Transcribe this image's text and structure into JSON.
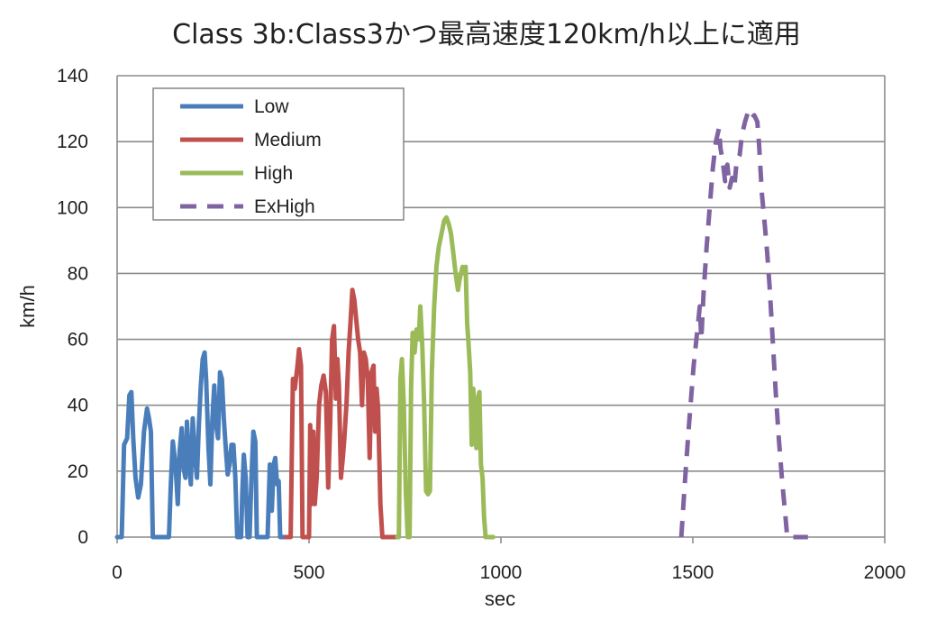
{
  "chart_data": {
    "type": "line",
    "title": "Class 3b:Class3かつ最高速度120km/h以上に適用",
    "xlabel": "sec",
    "ylabel": "km/h",
    "xlim": [
      0,
      2000
    ],
    "ylim": [
      0,
      140
    ],
    "x_ticks": [
      0,
      500,
      1000,
      1500,
      2000
    ],
    "y_ticks": [
      0,
      20,
      40,
      60,
      80,
      100,
      120,
      140
    ],
    "grid": true,
    "legend_position": "top-left",
    "series": [
      {
        "name": "Low",
        "color": "#4a7ebb",
        "dash": "solid",
        "points": [
          [
            0,
            0
          ],
          [
            12,
            0
          ],
          [
            18,
            28
          ],
          [
            26,
            30
          ],
          [
            32,
            43
          ],
          [
            37,
            44
          ],
          [
            42,
            30
          ],
          [
            48,
            18
          ],
          [
            55,
            12
          ],
          [
            62,
            16
          ],
          [
            70,
            32
          ],
          [
            78,
            39
          ],
          [
            83,
            36
          ],
          [
            88,
            32
          ],
          [
            93,
            0
          ],
          [
            135,
            0
          ],
          [
            140,
            16
          ],
          [
            145,
            29
          ],
          [
            152,
            22
          ],
          [
            158,
            10
          ],
          [
            163,
            26
          ],
          [
            168,
            33
          ],
          [
            173,
            21
          ],
          [
            178,
            18
          ],
          [
            182,
            35
          ],
          [
            188,
            22
          ],
          [
            192,
            16
          ],
          [
            197,
            36
          ],
          [
            203,
            24
          ],
          [
            208,
            18
          ],
          [
            213,
            34
          ],
          [
            218,
            46
          ],
          [
            223,
            54
          ],
          [
            228,
            56
          ],
          [
            232,
            48
          ],
          [
            238,
            27
          ],
          [
            243,
            16
          ],
          [
            248,
            35
          ],
          [
            253,
            46
          ],
          [
            258,
            34
          ],
          [
            263,
            30
          ],
          [
            268,
            50
          ],
          [
            273,
            48
          ],
          [
            278,
            36
          ],
          [
            283,
            27
          ],
          [
            288,
            19
          ],
          [
            293,
            22
          ],
          [
            298,
            28
          ],
          [
            303,
            28
          ],
          [
            308,
            18
          ],
          [
            313,
            0
          ],
          [
            323,
            0
          ],
          [
            326,
            13
          ],
          [
            330,
            25
          ],
          [
            335,
            18
          ],
          [
            340,
            0
          ],
          [
            345,
            0
          ],
          [
            350,
            18
          ],
          [
            355,
            32
          ],
          [
            360,
            29
          ],
          [
            364,
            0
          ],
          [
            392,
            0
          ],
          [
            398,
            22
          ],
          [
            403,
            8
          ],
          [
            408,
            22
          ],
          [
            412,
            24
          ],
          [
            417,
            16
          ],
          [
            421,
            17
          ],
          [
            425,
            0
          ],
          [
            440,
            0
          ]
        ]
      },
      {
        "name": "Medium",
        "color": "#c0504d",
        "dash": "solid",
        "points": [
          [
            440,
            0
          ],
          [
            452,
            0
          ],
          [
            458,
            48
          ],
          [
            463,
            45
          ],
          [
            470,
            52
          ],
          [
            474,
            57
          ],
          [
            479,
            52
          ],
          [
            483,
            0
          ],
          [
            500,
            0
          ],
          [
            503,
            34
          ],
          [
            507,
            10
          ],
          [
            511,
            32
          ],
          [
            515,
            10
          ],
          [
            520,
            18
          ],
          [
            526,
            40
          ],
          [
            532,
            46
          ],
          [
            538,
            49
          ],
          [
            544,
            44
          ],
          [
            550,
            15
          ],
          [
            555,
            34
          ],
          [
            560,
            60
          ],
          [
            565,
            64
          ],
          [
            570,
            42
          ],
          [
            574,
            54
          ],
          [
            578,
            46
          ],
          [
            583,
            18
          ],
          [
            588,
            24
          ],
          [
            592,
            30
          ],
          [
            598,
            41
          ],
          [
            603,
            56
          ],
          [
            608,
            65
          ],
          [
            613,
            75
          ],
          [
            618,
            72
          ],
          [
            623,
            66
          ],
          [
            628,
            60
          ],
          [
            633,
            56
          ],
          [
            638,
            40
          ],
          [
            643,
            56
          ],
          [
            648,
            54
          ],
          [
            653,
            48
          ],
          [
            658,
            24
          ],
          [
            663,
            50
          ],
          [
            668,
            52
          ],
          [
            672,
            32
          ],
          [
            676,
            45
          ],
          [
            680,
            39
          ],
          [
            686,
            10
          ],
          [
            691,
            0
          ],
          [
            730,
            0
          ]
        ]
      },
      {
        "name": "High",
        "color": "#9bbb59",
        "dash": "solid",
        "points": [
          [
            730,
            0
          ],
          [
            734,
            0
          ],
          [
            738,
            48
          ],
          [
            742,
            54
          ],
          [
            747,
            40
          ],
          [
            752,
            14
          ],
          [
            757,
            0
          ],
          [
            762,
            0
          ],
          [
            766,
            45
          ],
          [
            770,
            62
          ],
          [
            775,
            56
          ],
          [
            780,
            63
          ],
          [
            786,
            60
          ],
          [
            790,
            70
          ],
          [
            795,
            58
          ],
          [
            800,
            40
          ],
          [
            805,
            14
          ],
          [
            810,
            13
          ],
          [
            815,
            14
          ],
          [
            820,
            50
          ],
          [
            826,
            70
          ],
          [
            832,
            82
          ],
          [
            838,
            88
          ],
          [
            845,
            92
          ],
          [
            852,
            96
          ],
          [
            858,
            97
          ],
          [
            864,
            95
          ],
          [
            870,
            92
          ],
          [
            876,
            86
          ],
          [
            882,
            80
          ],
          [
            888,
            75
          ],
          [
            892,
            78
          ],
          [
            896,
            80
          ],
          [
            900,
            82
          ],
          [
            904,
            80
          ],
          [
            908,
            82
          ],
          [
            912,
            65
          ],
          [
            916,
            58
          ],
          [
            920,
            50
          ],
          [
            924,
            28
          ],
          [
            928,
            45
          ],
          [
            932,
            38
          ],
          [
            936,
            27
          ],
          [
            940,
            42
          ],
          [
            944,
            44
          ],
          [
            948,
            22
          ],
          [
            952,
            18
          ],
          [
            956,
            6
          ],
          [
            960,
            0
          ],
          [
            980,
            0
          ]
        ]
      },
      {
        "name": "ExHigh",
        "color": "#8064a2",
        "dash": "dashed",
        "points": [
          [
            1470,
            0
          ],
          [
            1480,
            18
          ],
          [
            1490,
            34
          ],
          [
            1502,
            52
          ],
          [
            1512,
            63
          ],
          [
            1518,
            70
          ],
          [
            1522,
            60
          ],
          [
            1528,
            74
          ],
          [
            1536,
            88
          ],
          [
            1544,
            100
          ],
          [
            1552,
            112
          ],
          [
            1560,
            120
          ],
          [
            1568,
            124
          ],
          [
            1572,
            118
          ],
          [
            1578,
            114
          ],
          [
            1584,
            108
          ],
          [
            1590,
            113
          ],
          [
            1596,
            106
          ],
          [
            1602,
            109
          ],
          [
            1608,
            106
          ],
          [
            1614,
            114
          ],
          [
            1622,
            116
          ],
          [
            1628,
            122
          ],
          [
            1636,
            126
          ],
          [
            1644,
            129
          ],
          [
            1652,
            127
          ],
          [
            1660,
            128
          ],
          [
            1668,
            126
          ],
          [
            1672,
            120
          ],
          [
            1680,
            104
          ],
          [
            1688,
            94
          ],
          [
            1694,
            86
          ],
          [
            1700,
            76
          ],
          [
            1708,
            60
          ],
          [
            1716,
            44
          ],
          [
            1724,
            30
          ],
          [
            1732,
            18
          ],
          [
            1740,
            8
          ],
          [
            1746,
            0
          ],
          [
            1800,
            0
          ]
        ]
      }
    ]
  }
}
